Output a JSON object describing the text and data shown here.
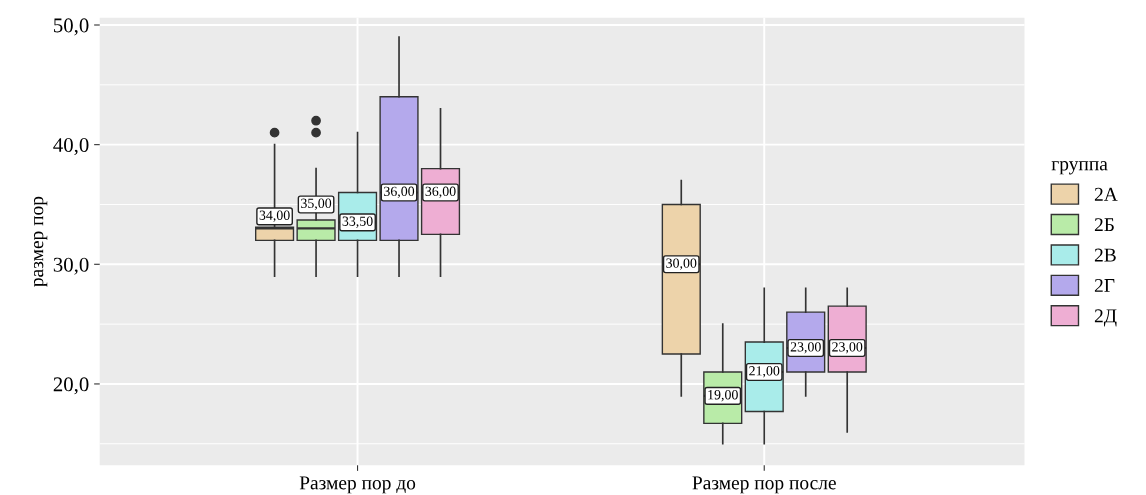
{
  "chart_data": {
    "type": "box",
    "xlabel": null,
    "ylabel": "размер пор",
    "legend_title": "группа",
    "categories": [
      "Размер пор до",
      "Размер пор после"
    ],
    "ylim": [
      13.2,
      50.6
    ],
    "yticks": [
      {
        "value": 20,
        "label": "20,0"
      },
      {
        "value": 30,
        "label": "30,0"
      },
      {
        "value": 40,
        "label": "40,0"
      },
      {
        "value": 50,
        "label": "50,0"
      }
    ],
    "grid": true,
    "legend": "right",
    "series": [
      {
        "name": "2А",
        "color": "#edd3aa",
        "value_labels": [
          "34,00",
          "30,00"
        ],
        "boxes": [
          {
            "low": 29,
            "q1": 32,
            "median": 33,
            "q3": 33.1,
            "high": 40,
            "mean": 34,
            "outliers": [
              41
            ]
          },
          {
            "low": 19,
            "q1": 22.5,
            "median": 30,
            "q3": 35,
            "high": 37,
            "mean": 30
          }
        ]
      },
      {
        "name": "2Б",
        "color": "#b9eba8",
        "value_labels": [
          "35,00",
          "19,00"
        ],
        "boxes": [
          {
            "low": 29,
            "q1": 32,
            "median": 33,
            "q3": 33.7,
            "high": 38,
            "mean": 35,
            "outliers": [
              41,
              42
            ]
          },
          {
            "low": 15,
            "q1": 16.7,
            "median": 19,
            "q3": 21,
            "high": 25,
            "mean": 19
          }
        ]
      },
      {
        "name": "2В",
        "color": "#a9ecea",
        "value_labels": [
          "33,50",
          "21,00"
        ],
        "boxes": [
          {
            "low": 29,
            "q1": 32,
            "median": 33.5,
            "q3": 36,
            "high": 41,
            "mean": 33.5
          },
          {
            "low": 15,
            "q1": 17.7,
            "median": 21,
            "q3": 23.5,
            "high": 28,
            "mean": 21
          }
        ]
      },
      {
        "name": "2Г",
        "color": "#b4a9ec",
        "value_labels": [
          "36,00",
          "23,00"
        ],
        "boxes": [
          {
            "low": 29,
            "q1": 32,
            "median": 36,
            "q3": 44,
            "high": 49,
            "mean": 36
          },
          {
            "low": 19,
            "q1": 21,
            "median": 23,
            "q3": 26,
            "high": 28,
            "mean": 23
          }
        ]
      },
      {
        "name": "2Д",
        "color": "#eeaed3",
        "value_labels": [
          "36,00",
          "23,00"
        ],
        "boxes": [
          {
            "low": 29,
            "q1": 32.5,
            "median": 36,
            "q3": 38,
            "high": 43,
            "mean": 36
          },
          {
            "low": 16,
            "q1": 21,
            "median": 23,
            "q3": 26.5,
            "high": 28,
            "mean": 23
          }
        ]
      }
    ]
  }
}
